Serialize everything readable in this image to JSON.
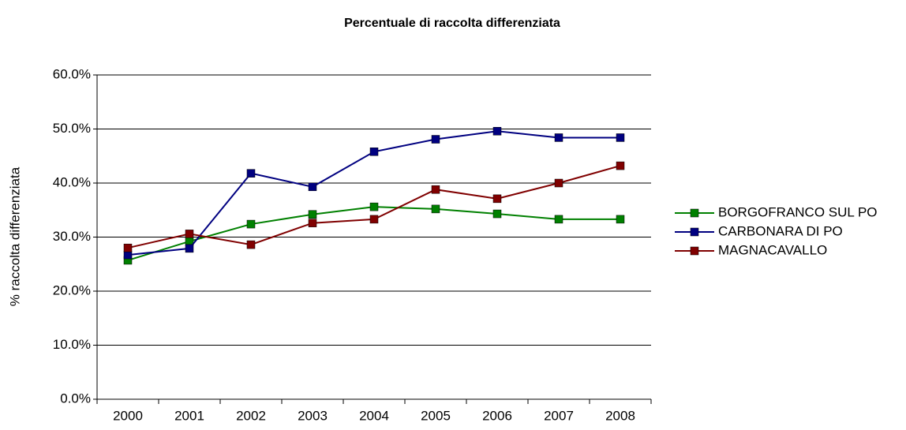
{
  "chart_data": {
    "type": "line",
    "title": "Percentuale di raccolta differenziata",
    "y_label": "% raccolta differenziata",
    "categories": [
      "2000",
      "2001",
      "2002",
      "2003",
      "2004",
      "2005",
      "2006",
      "2007",
      "2008"
    ],
    "series": [
      {
        "name": "BORGOFRANCO SUL PO",
        "color": "#008000",
        "values": [
          25.7,
          29.2,
          32.4,
          34.2,
          35.6,
          35.2,
          34.3,
          33.3,
          33.3
        ]
      },
      {
        "name": "CARBONARA DI PO",
        "color": "#000080",
        "values": [
          26.7,
          27.9,
          41.8,
          39.3,
          45.8,
          48.1,
          49.6,
          48.4,
          48.4
        ]
      },
      {
        "name": "MAGNACAVALLO",
        "color": "#800000",
        "values": [
          28.0,
          30.6,
          28.6,
          32.6,
          33.3,
          38.8,
          37.1,
          40.0,
          43.2
        ]
      }
    ],
    "ylim": [
      0,
      60
    ],
    "yticks": [
      {
        "value": 0,
        "label": "0.0%"
      },
      {
        "value": 10,
        "label": "10.0%"
      },
      {
        "value": 20,
        "label": "20.0%"
      },
      {
        "value": 30,
        "label": "30.0%"
      },
      {
        "value": 40,
        "label": "40.0%"
      },
      {
        "value": 50,
        "label": "50.0%"
      },
      {
        "value": 60,
        "label": "60.0%"
      }
    ],
    "grid": true,
    "legend": "right"
  }
}
